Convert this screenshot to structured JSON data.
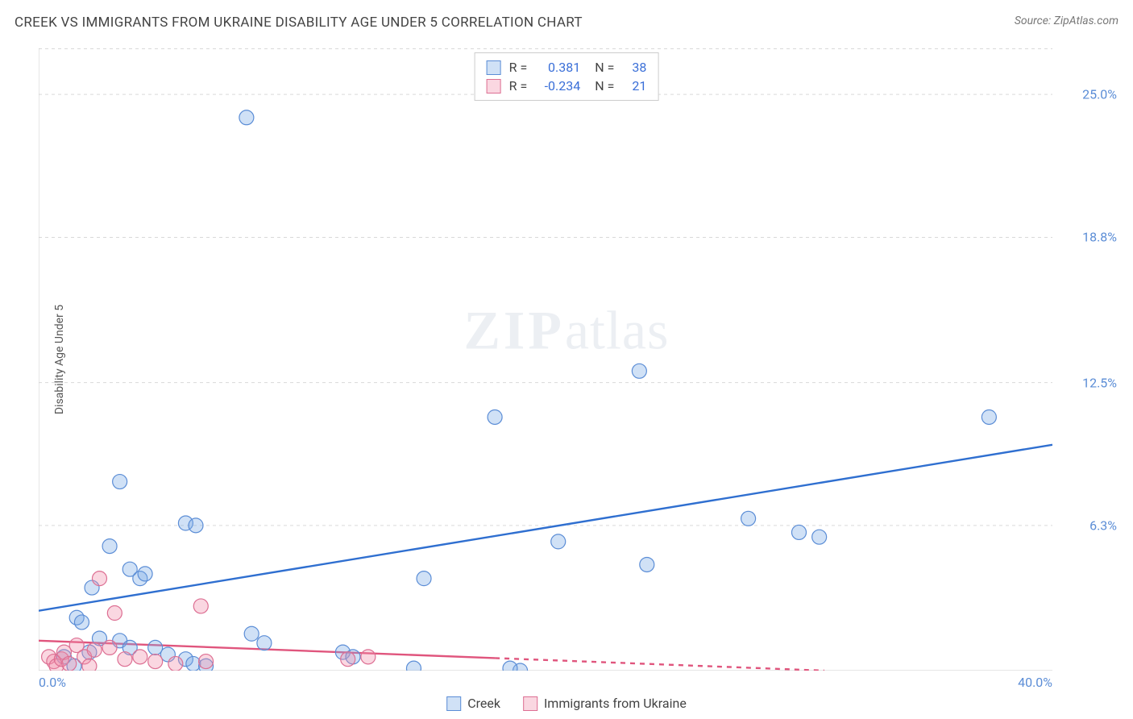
{
  "chart": {
    "type": "scatter",
    "title": "CREEK VS IMMIGRANTS FROM UKRAINE DISABILITY AGE UNDER 5 CORRELATION CHART",
    "source": "Source: ZipAtlas.com",
    "ylabel": "Disability Age Under 5",
    "watermark_zip": "ZIP",
    "watermark_atlas": "atlas",
    "xlim": [
      0,
      40
    ],
    "ylim": [
      0,
      27
    ],
    "x_tick_labels": [
      "0.0%",
      "40.0%"
    ],
    "x_tick_minor_step_pct": 2.5,
    "y_ticks": [
      {
        "v": 25.0,
        "label": "25.0%"
      },
      {
        "v": 18.8,
        "label": "18.8%"
      },
      {
        "v": 12.5,
        "label": "12.5%"
      },
      {
        "v": 6.3,
        "label": "6.3%"
      }
    ],
    "grid_color": "#d9d9d9",
    "axis_color": "#cccccc",
    "background_color": "#ffffff",
    "marker_radius": 9,
    "marker_stroke_width": 1.2,
    "trend_line_width": 2.4,
    "series": [
      {
        "name": "Creek",
        "fill": "rgba(120,170,230,0.35)",
        "stroke": "#5b8dd6",
        "line_color": "#2f6fd0",
        "r_label": "R =",
        "r_value": "0.381",
        "n_label": "N =",
        "n_value": "38",
        "trend": {
          "x1": 0,
          "y1": 2.6,
          "x2": 40,
          "y2": 9.8,
          "dashed_from": null
        },
        "points": [
          [
            8.2,
            24.0
          ],
          [
            3.2,
            8.2
          ],
          [
            5.8,
            6.4
          ],
          [
            6.2,
            6.3
          ],
          [
            2.8,
            5.4
          ],
          [
            3.6,
            4.4
          ],
          [
            4.0,
            4.0
          ],
          [
            4.2,
            4.2
          ],
          [
            2.1,
            3.6
          ],
          [
            1.5,
            2.3
          ],
          [
            1.7,
            2.1
          ],
          [
            2.4,
            1.4
          ],
          [
            3.2,
            1.3
          ],
          [
            3.6,
            1.0
          ],
          [
            4.6,
            1.0
          ],
          [
            5.1,
            0.7
          ],
          [
            5.8,
            0.5
          ],
          [
            6.1,
            0.3
          ],
          [
            6.6,
            0.2
          ],
          [
            8.4,
            1.6
          ],
          [
            8.9,
            1.2
          ],
          [
            12.0,
            0.8
          ],
          [
            12.4,
            0.6
          ],
          [
            14.8,
            0.1
          ],
          [
            15.2,
            4.0
          ],
          [
            18.0,
            11.0
          ],
          [
            19.0,
            0.0
          ],
          [
            18.6,
            0.1
          ],
          [
            20.5,
            5.6
          ],
          [
            23.7,
            13.0
          ],
          [
            24.0,
            4.6
          ],
          [
            28.0,
            6.6
          ],
          [
            30.0,
            6.0
          ],
          [
            30.8,
            5.8
          ],
          [
            37.5,
            11.0
          ],
          [
            1.0,
            0.6
          ],
          [
            1.4,
            0.2
          ],
          [
            2.0,
            0.8
          ]
        ]
      },
      {
        "name": "Immigrants from Ukraine",
        "fill": "rgba(240,140,170,0.35)",
        "stroke": "#dd6f93",
        "line_color": "#e0557d",
        "r_label": "R =",
        "r_value": "-0.234",
        "n_label": "N =",
        "n_value": "21",
        "trend": {
          "x1": 0,
          "y1": 1.3,
          "x2": 31,
          "y2": 0.0,
          "dashed_from": 18
        },
        "points": [
          [
            0.4,
            0.6
          ],
          [
            0.6,
            0.4
          ],
          [
            0.7,
            0.2
          ],
          [
            0.9,
            0.5
          ],
          [
            1.0,
            0.8
          ],
          [
            1.2,
            0.3
          ],
          [
            1.5,
            1.1
          ],
          [
            1.8,
            0.6
          ],
          [
            2.0,
            0.2
          ],
          [
            2.2,
            0.9
          ],
          [
            2.4,
            4.0
          ],
          [
            2.8,
            1.0
          ],
          [
            3.0,
            2.5
          ],
          [
            3.4,
            0.5
          ],
          [
            4.0,
            0.6
          ],
          [
            4.6,
            0.4
          ],
          [
            5.4,
            0.3
          ],
          [
            6.4,
            2.8
          ],
          [
            6.6,
            0.4
          ],
          [
            12.2,
            0.5
          ],
          [
            13.0,
            0.6
          ]
        ]
      }
    ],
    "bottom_legend": [
      {
        "label": "Creek",
        "fill": "rgba(120,170,230,0.35)",
        "stroke": "#5b8dd6"
      },
      {
        "label": "Immigrants from Ukraine",
        "fill": "rgba(240,140,170,0.35)",
        "stroke": "#dd6f93"
      }
    ]
  }
}
